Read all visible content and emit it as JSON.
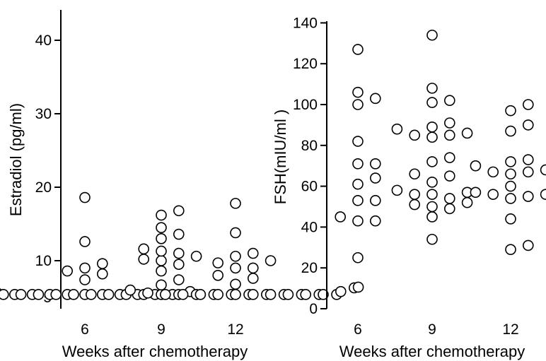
{
  "chart_data": [
    {
      "type": "scatter",
      "title": "",
      "xlabel": "Weeks after chemotherapy",
      "ylabel": "Estradiol (pg/ml)",
      "categories": [
        "6",
        "9",
        "12"
      ],
      "y_ticks": [
        5,
        10,
        20,
        30,
        40
      ],
      "ylim": [
        4,
        43
      ],
      "grid": false,
      "series": [
        {
          "category": "6",
          "values": [
            18.6,
            12.6,
            9.6,
            9.0,
            8.6,
            8.2,
            7.4,
            5.4,
            5.4,
            5.4,
            5.4,
            5.4,
            5.4,
            5.4,
            5.4,
            5.4,
            5.4,
            5.6,
            5.8
          ]
        },
        {
          "category": "9",
          "values": [
            16.8,
            16.2,
            14.5,
            13.6,
            13.0,
            11.6,
            11.3,
            11.0,
            10.6,
            10.2,
            10.0,
            9.5,
            8.6,
            7.4,
            6.7,
            6.3,
            6.0,
            5.4,
            5.4,
            5.4,
            5.4,
            5.4,
            5.4,
            5.4,
            5.4,
            5.4,
            5.4,
            5.4,
            5.4,
            5.4,
            5.4,
            5.4,
            5.4,
            5.4,
            5.4,
            5.4,
            5.4
          ]
        },
        {
          "category": "12",
          "values": [
            17.8,
            13.8,
            11.0,
            10.6,
            10.0,
            9.7,
            9.0,
            9.0,
            8.0,
            7.6,
            6.8,
            6.4,
            6.0,
            5.8,
            5.6,
            5.4,
            5.4,
            5.4,
            5.4,
            5.4,
            5.4,
            5.4,
            5.4,
            5.4,
            5.4
          ]
        }
      ]
    },
    {
      "type": "scatter",
      "title": "",
      "xlabel": "Weeks after chemotherapy",
      "ylabel": "FSH(mIU/ml )",
      "categories": [
        "6",
        "9",
        "12"
      ],
      "y_ticks": [
        0,
        20,
        40,
        60,
        80,
        100,
        120,
        140
      ],
      "ylim": [
        0,
        140
      ],
      "grid": false,
      "series": [
        {
          "category": "6",
          "values": [
            127,
            106,
            103,
            100,
            82,
            71,
            71,
            64,
            61,
            53,
            53,
            45,
            43,
            43,
            25
          ]
        },
        {
          "category": "9",
          "values": [
            134,
            108,
            102,
            101,
            91,
            89,
            88,
            86,
            85,
            85,
            84,
            74,
            72,
            66,
            65,
            62,
            58,
            57,
            56,
            56,
            54,
            52,
            51,
            50,
            49,
            45,
            34
          ]
        },
        {
          "category": "12",
          "values": [
            100,
            97,
            90,
            87,
            73,
            72,
            70,
            68,
            67,
            67,
            66,
            60,
            57,
            56,
            56,
            55,
            54,
            44,
            31,
            29
          ]
        }
      ]
    }
  ]
}
